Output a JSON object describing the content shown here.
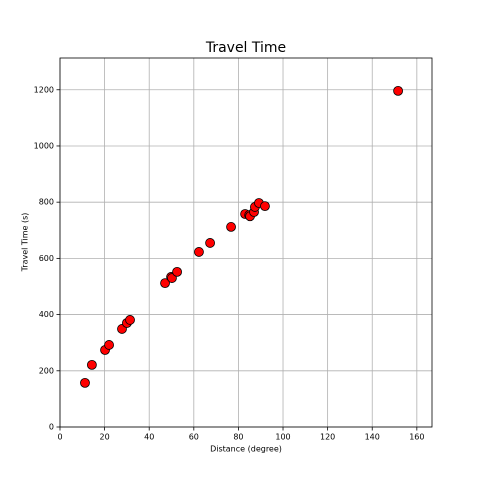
{
  "chart_data": {
    "type": "scatter",
    "title": "Travel Time",
    "x_label": "Distance (degree)",
    "y_label": "Travel Time (s)",
    "series": [
      {
        "name": "Travel Time",
        "color": "#ff0000",
        "edgecolor": "#000000",
        "x": [
          11.2,
          14.3,
          20.2,
          22.0,
          27.8,
          30.0,
          31.4,
          47.1,
          49.8,
          50.2,
          52.5,
          62.3,
          67.3,
          76.7,
          83.0,
          84.8,
          85.2,
          87.0,
          87.4,
          89.2,
          91.9,
          151.6
        ],
        "values": [
          157,
          221,
          274,
          292,
          349,
          370,
          381,
          512,
          534,
          530,
          552,
          623,
          655,
          712,
          758,
          754,
          750,
          765,
          783,
          797,
          786,
          1196
        ]
      }
    ],
    "xlim": [
      0,
      166.8
    ],
    "xticks": [
      0,
      20,
      40,
      60,
      80,
      100,
      120,
      140,
      160
    ],
    "ylim": [
      0,
      1313
    ],
    "yticks": [
      0,
      200,
      400,
      600,
      800,
      1000,
      1200
    ],
    "grid": true
  }
}
